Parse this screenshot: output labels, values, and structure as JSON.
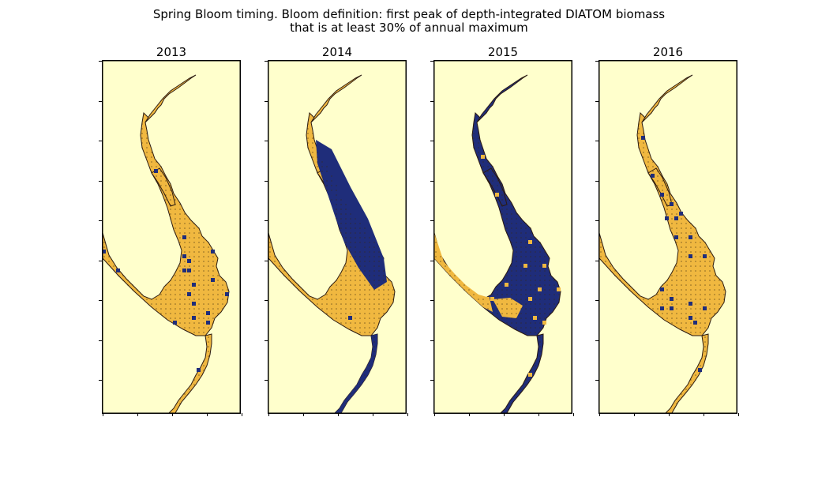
{
  "figure": {
    "title_line1": "Spring Bloom timing. Bloom definition: first peak of depth-integrated DIATOM biomass",
    "title_line2": "that is at least 30% of annual maximum"
  },
  "colors": {
    "background": "#ffffcc",
    "early_bloom": "#f0b840",
    "late_bloom": "#1f2d7a",
    "coastline": "#2b1a10",
    "land": "#ffffff"
  },
  "chart_data": [
    {
      "type": "heatmap",
      "title": "2013",
      "dominant": "early"
    },
    {
      "type": "heatmap",
      "title": "2014",
      "dominant": "mixed"
    },
    {
      "type": "heatmap",
      "title": "2015",
      "dominant": "late"
    },
    {
      "type": "heatmap",
      "title": "2016",
      "dominant": "early"
    }
  ]
}
